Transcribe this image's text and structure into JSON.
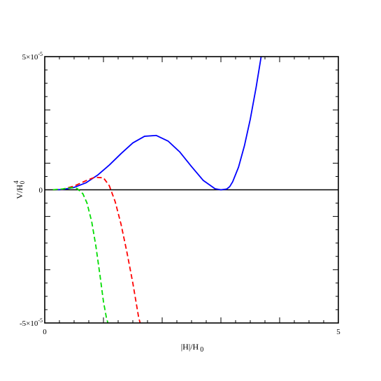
{
  "chart_data": {
    "type": "line",
    "title": "",
    "xlabel": {
      "main": "|H|/H",
      "subscript": "0"
    },
    "ylabel": {
      "main": "V/H",
      "superscript": "4",
      "subscript": "0"
    },
    "xlim": [
      0,
      5
    ],
    "ylim": [
      -5e-05,
      5e-05
    ],
    "x_tick_labels": [
      "0",
      "5"
    ],
    "y_tick_labels": [
      {
        "value": 5e-05,
        "base": "5×10",
        "exp": "-5"
      },
      {
        "value": 0,
        "base": "0",
        "exp": ""
      },
      {
        "value": -5e-05,
        "base": "-5×10",
        "exp": "-5"
      }
    ],
    "grid": false,
    "legend": "none",
    "zero_line": true,
    "series": [
      {
        "color": "#0000ff",
        "style": "solid",
        "x": [
          0.14,
          0.3,
          0.5,
          0.7,
          0.9,
          1.1,
          1.3,
          1.5,
          1.7,
          1.9,
          2.1,
          2.3,
          2.5,
          2.7,
          2.9,
          3.0,
          3.1,
          3.15,
          3.2,
          3.3,
          3.4,
          3.5,
          3.6,
          3.7,
          3.8
        ],
        "y": [
          0,
          1e-07,
          9e-07,
          2.6e-06,
          5.5e-06,
          9.3e-06,
          1.36e-05,
          1.76e-05,
          2.01e-05,
          2.04e-05,
          1.83e-05,
          1.42e-05,
          8.7e-06,
          3.5e-06,
          4e-07,
          0,
          3e-07,
          1.2e-06,
          3e-06,
          8.5e-06,
          1.65e-05,
          2.65e-05,
          3.85e-05,
          5.2e-05,
          5.2e-05
        ]
      },
      {
        "color": "#ff0000",
        "style": "dashed",
        "x": [
          0.14,
          0.3,
          0.5,
          0.7,
          0.85,
          1.0,
          1.1,
          1.2,
          1.3,
          1.4,
          1.5,
          1.6,
          1.65
        ],
        "y": [
          0,
          2e-07,
          1.4e-06,
          3.4e-06,
          4.7e-06,
          4.5e-06,
          1.5e-06,
          -4.5e-06,
          -1.3e-05,
          -2.35e-05,
          -3.5e-05,
          -4.8e-05,
          -5.2e-05
        ]
      },
      {
        "color": "#00dd00",
        "style": "dashed",
        "x": [
          0.14,
          0.3,
          0.45,
          0.55,
          0.65,
          0.72,
          0.8,
          0.87,
          0.94,
          1.0,
          1.05,
          1.1
        ],
        "y": [
          0,
          3e-07,
          8e-07,
          5e-07,
          -1.5e-06,
          -5e-06,
          -1.2e-05,
          -2.1e-05,
          -3.2e-05,
          -4.2e-05,
          -4.8e-05,
          -5.2e-05
        ]
      }
    ]
  }
}
